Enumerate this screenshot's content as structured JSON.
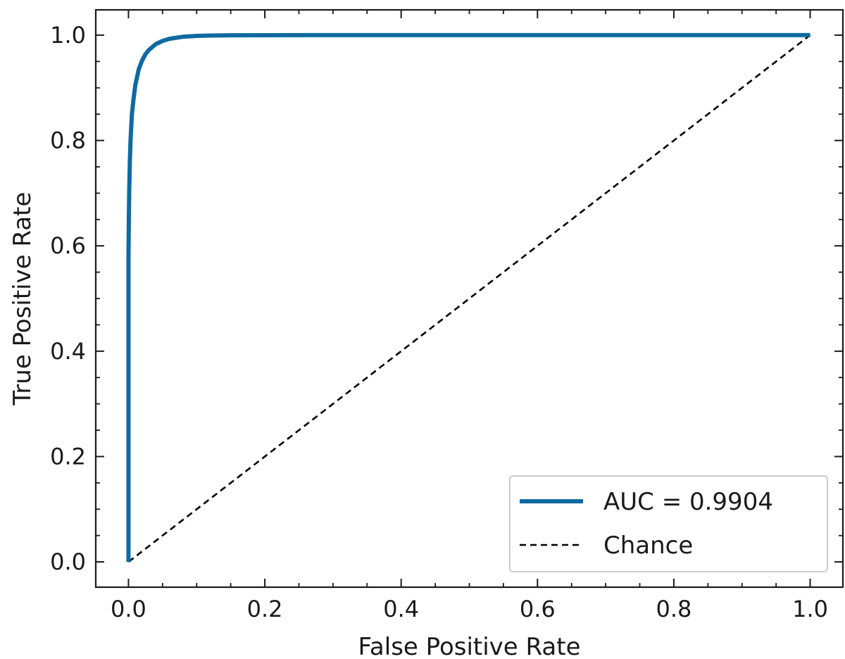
{
  "chart_data": {
    "type": "line",
    "title": "",
    "xlabel": "False Positive Rate",
    "ylabel": "True Positive Rate",
    "xlim": [
      -0.048,
      1.048
    ],
    "ylim": [
      -0.048,
      1.048
    ],
    "xticks": [
      0.0,
      0.2,
      0.4,
      0.6,
      0.8,
      1.0
    ],
    "xtick_labels": [
      "0.0",
      "0.2",
      "0.4",
      "0.6",
      "0.8",
      "1.0"
    ],
    "yticks": [
      0.0,
      0.2,
      0.4,
      0.6,
      0.8,
      1.0
    ],
    "ytick_labels": [
      "0.0",
      "0.2",
      "0.4",
      "0.6",
      "0.8",
      "1.0"
    ],
    "minor_tick_step": 0.05,
    "grid": false,
    "legend_position": "lower-right",
    "series": [
      {
        "name": "AUC = 0.9904",
        "style": "solid",
        "color": "#0f6aa0",
        "x": [
          0.0,
          0.0,
          0.0005,
          0.001,
          0.002,
          0.003,
          0.005,
          0.0075,
          0.01,
          0.015,
          0.02,
          0.025,
          0.03,
          0.04,
          0.05,
          0.06,
          0.07,
          0.08,
          0.1,
          0.12,
          0.15,
          0.2,
          0.26,
          0.5,
          0.75,
          1.0
        ],
        "y": [
          0.0,
          0.58,
          0.65,
          0.7,
          0.76,
          0.8,
          0.85,
          0.88,
          0.905,
          0.935,
          0.952,
          0.964,
          0.972,
          0.983,
          0.989,
          0.993,
          0.995,
          0.997,
          0.9985,
          0.9993,
          0.9997,
          0.9999,
          1.0,
          1.0,
          1.0,
          1.0
        ]
      },
      {
        "name": "Chance",
        "style": "dashed",
        "color": "#000000",
        "x": [
          0.0,
          1.0
        ],
        "y": [
          0.0,
          1.0
        ]
      }
    ]
  }
}
